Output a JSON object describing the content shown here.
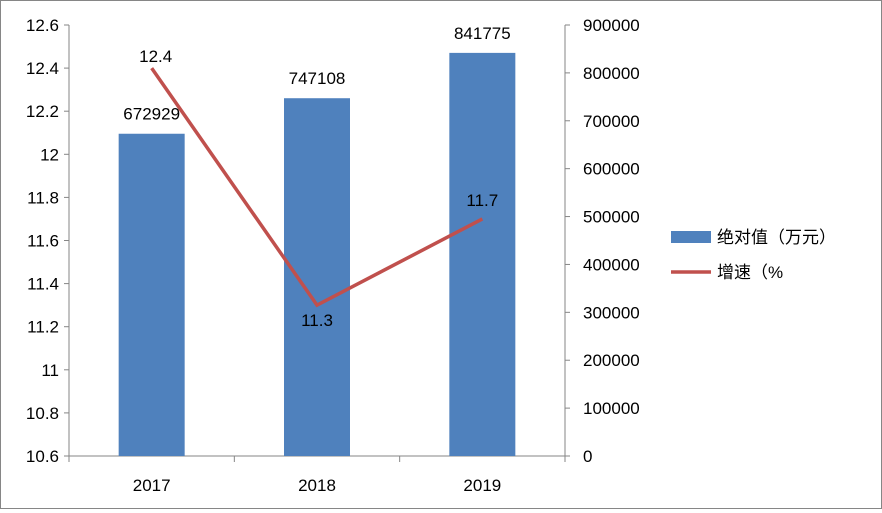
{
  "chart_data": {
    "type": "bar+line",
    "categories": [
      "2017",
      "2018",
      "2019"
    ],
    "series": [
      {
        "name": "绝对值（万元）",
        "kind": "bar",
        "axis": "right",
        "values": [
          672929,
          747108,
          841775
        ],
        "color": "#4F81BD"
      },
      {
        "name": "增速（%",
        "kind": "line",
        "axis": "left",
        "values": [
          12.4,
          11.3,
          11.7
        ],
        "color": "#C0504D"
      }
    ],
    "y_left": {
      "min": 10.6,
      "max": 12.6,
      "ticks": [
        "10.6",
        "10.8",
        "11",
        "11.2",
        "11.4",
        "11.6",
        "11.8",
        "12",
        "12.2",
        "12.4",
        "12.6"
      ]
    },
    "y_right": {
      "min": 0,
      "max": 900000,
      "ticks": [
        "0",
        "100000",
        "200000",
        "300000",
        "400000",
        "500000",
        "600000",
        "700000",
        "800000",
        "900000"
      ]
    },
    "data_labels": {
      "bar": [
        "672929",
        "747108",
        "841775"
      ],
      "line": [
        "12.4",
        "11.3",
        "11.7"
      ]
    },
    "legend_position": "right",
    "grid": false
  }
}
